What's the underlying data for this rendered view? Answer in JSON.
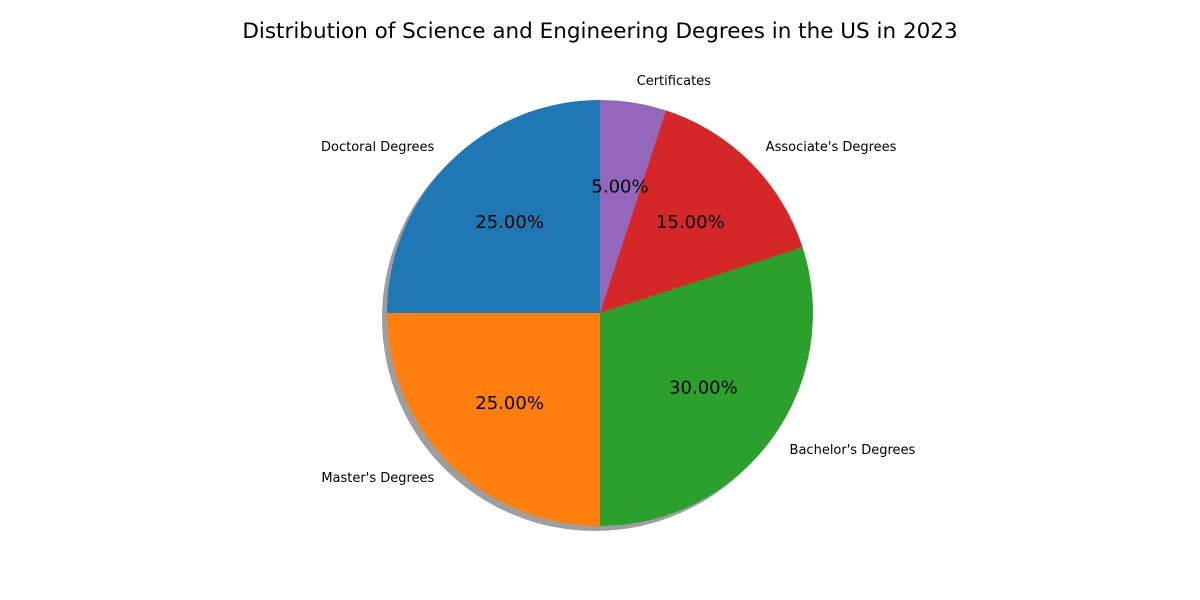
{
  "chart_data": {
    "type": "pie",
    "title": "Distribution of Science and Engineering Degrees in the US in 2023",
    "categories": [
      "Doctoral Degrees",
      "Master's Degrees",
      "Bachelor's Degrees",
      "Associate's Degrees",
      "Certificates"
    ],
    "values": [
      25,
      25,
      30,
      15,
      5
    ],
    "percent_labels": [
      "25.00%",
      "25.00%",
      "30.00%",
      "15.00%",
      "5.00%"
    ],
    "colors": [
      "#1f77b4",
      "#ff7f0e",
      "#2ca02c",
      "#d62728",
      "#9467bd"
    ],
    "start_angle_deg": 90,
    "direction": "counterclockwise",
    "shadow": true
  }
}
